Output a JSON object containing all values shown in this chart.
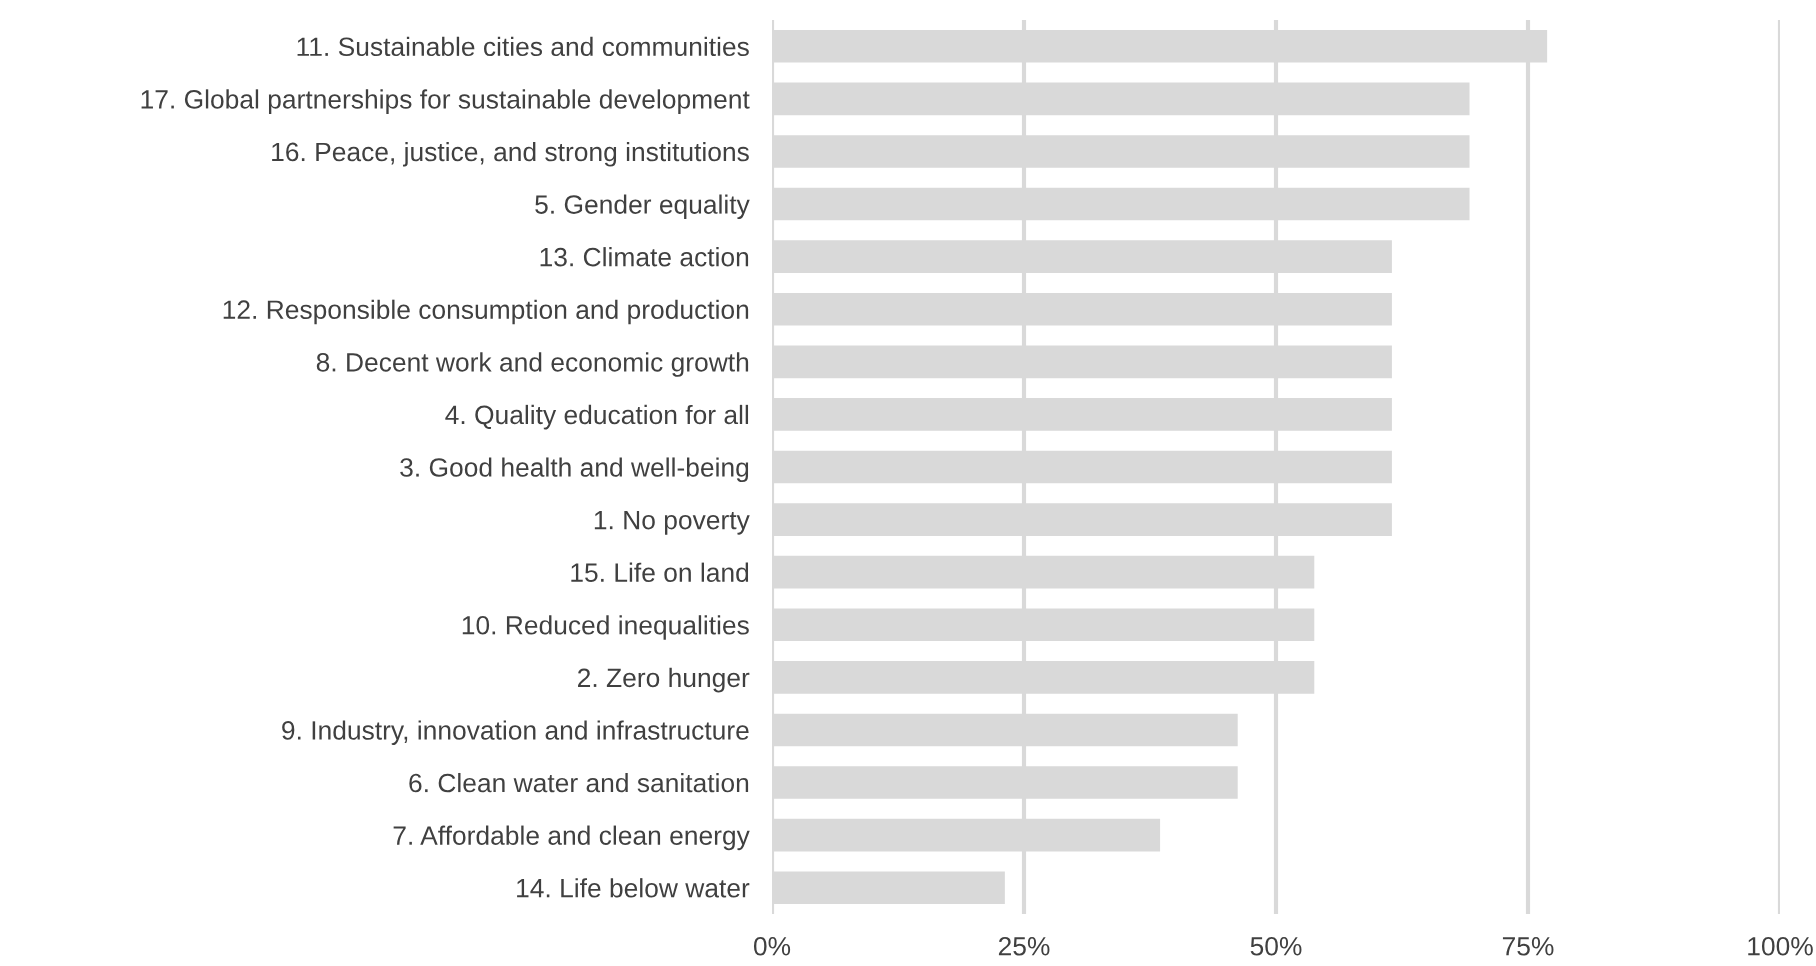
{
  "chart_data": {
    "type": "bar",
    "orientation": "horizontal",
    "categories": [
      "11. Sustainable cities and communities",
      "17. Global partnerships for sustainable development",
      "16. Peace, justice, and strong institutions",
      "5. Gender equality",
      "13. Climate action",
      "12. Responsible consumption and production",
      "8. Decent work and economic growth",
      "4. Quality education for all",
      "3. Good health and well-being",
      "1. No poverty",
      "15. Life on land",
      "10. Reduced inequalities",
      "2. Zero hunger",
      "9. Industry, innovation and infrastructure",
      "6. Clean water and sanitation",
      "7. Affordable and clean energy",
      "14. Life below water"
    ],
    "values": [
      76.9,
      69.2,
      69.2,
      69.2,
      61.5,
      61.5,
      61.5,
      61.5,
      61.5,
      61.5,
      53.8,
      53.8,
      53.8,
      46.2,
      46.2,
      38.5,
      23.1
    ],
    "color": "#d9d9d9",
    "xlim": [
      0,
      100
    ],
    "xticks": [
      {
        "value": 0,
        "label": "0%"
      },
      {
        "value": 25,
        "label": "25%"
      },
      {
        "value": 50,
        "label": "50%"
      },
      {
        "value": 75,
        "label": "75%"
      },
      {
        "value": 100,
        "label": "100%"
      }
    ],
    "grid": "x",
    "legend": false
  }
}
